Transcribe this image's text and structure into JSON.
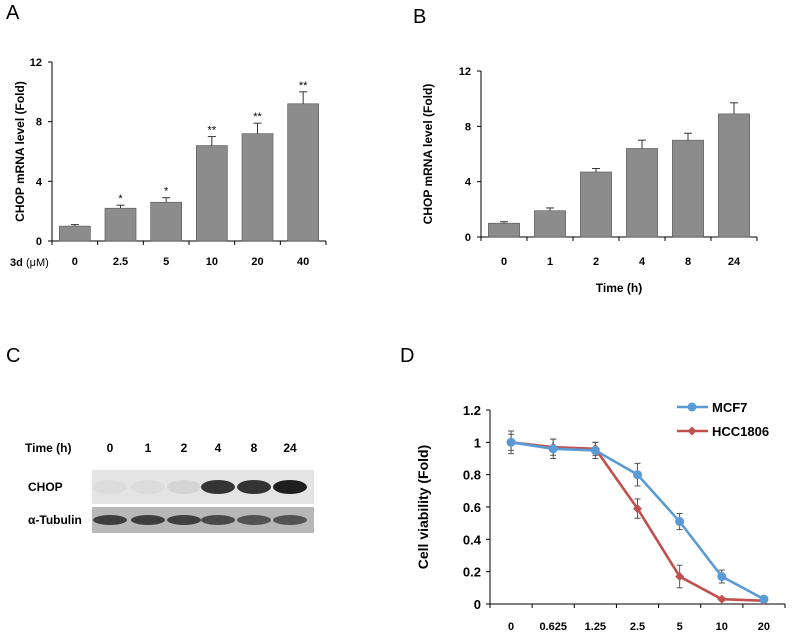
{
  "panels": {
    "A": {
      "letter": "A"
    },
    "B": {
      "letter": "B"
    },
    "C": {
      "letter": "C"
    },
    "D": {
      "letter": "D"
    }
  },
  "chart_data": [
    {
      "panel": "A",
      "type": "bar",
      "ylabel": "CHOP mRNA level (Fold)",
      "xlabel_prefix": "3d",
      "xlabel_unit": "(μM)",
      "categories": [
        "0",
        "2.5",
        "5",
        "10",
        "20",
        "40"
      ],
      "values": [
        1.0,
        2.2,
        2.6,
        6.4,
        7.2,
        9.2
      ],
      "errors": [
        0.1,
        0.2,
        0.3,
        0.6,
        0.7,
        0.8
      ],
      "significance": [
        "",
        "*",
        "*",
        "**",
        "**",
        "**"
      ],
      "yticks": [
        "0",
        "4",
        "8",
        "12"
      ],
      "ylim": [
        0,
        12
      ],
      "bar_color": "#8c8c8c"
    },
    {
      "panel": "B",
      "type": "bar",
      "ylabel": "CHOP mRNA level (Fold)",
      "xlabel": "Time (h)",
      "categories": [
        "0",
        "1",
        "2",
        "4",
        "8",
        "24"
      ],
      "values": [
        1.0,
        1.9,
        4.7,
        6.4,
        7.0,
        8.9
      ],
      "errors": [
        0.1,
        0.2,
        0.25,
        0.6,
        0.5,
        0.8
      ],
      "yticks": [
        "0",
        "4",
        "8",
        "12"
      ],
      "ylim": [
        0,
        12
      ],
      "bar_color": "#8c8c8c"
    },
    {
      "panel": "D",
      "type": "line",
      "ylabel": "Cell viability (Fold)",
      "categories": [
        "0",
        "0.625",
        "1.25",
        "2.5",
        "5",
        "10",
        "20"
      ],
      "yticks": [
        "0",
        "0.2",
        "0.4",
        "0.6",
        "0.8",
        "1",
        "1.2"
      ],
      "ylim": [
        0,
        1.2
      ],
      "legend_position": "top-right",
      "series": [
        {
          "name": "MCF7",
          "color": "#5b9bd5",
          "values": [
            1.0,
            0.96,
            0.95,
            0.8,
            0.51,
            0.17,
            0.03
          ],
          "errors": [
            0.07,
            0.06,
            0.05,
            0.07,
            0.05,
            0.04,
            0.01
          ]
        },
        {
          "name": "HCC1806",
          "color": "#c0504d",
          "values": [
            1.0,
            0.97,
            0.96,
            0.59,
            0.17,
            0.03,
            0.02
          ],
          "errors": [
            0.05,
            0.05,
            0.04,
            0.06,
            0.07,
            0.01,
            0.01
          ]
        }
      ]
    }
  ],
  "blot": {
    "time_label": "Time (h)",
    "lanes": [
      "0",
      "1",
      "2",
      "4",
      "8",
      "24"
    ],
    "rows": [
      {
        "label": "CHOP",
        "intensity": [
          0.05,
          0.05,
          0.08,
          0.85,
          0.85,
          0.95
        ]
      },
      {
        "label": "α-Tubulin",
        "intensity": [
          0.8,
          0.8,
          0.8,
          0.75,
          0.7,
          0.7
        ]
      }
    ]
  }
}
